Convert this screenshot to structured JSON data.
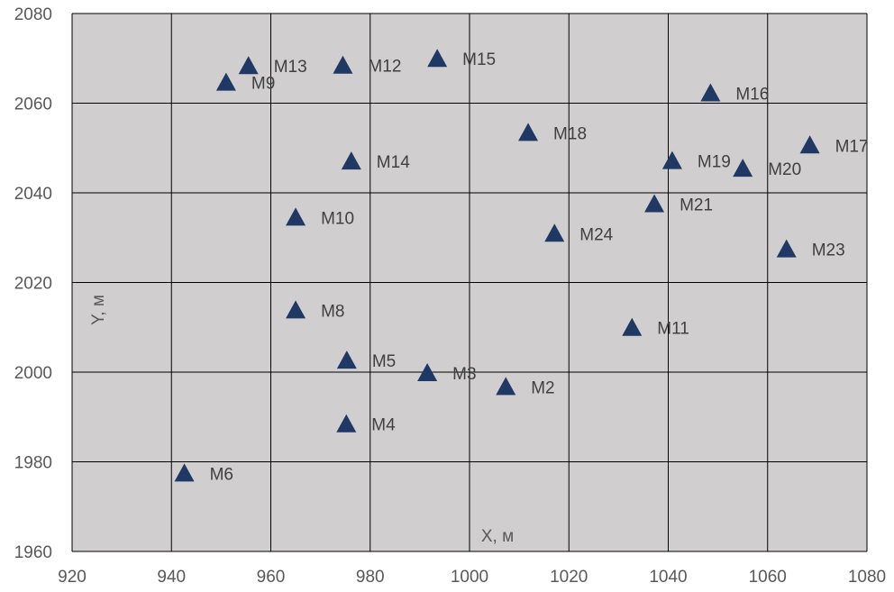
{
  "chart_data": {
    "type": "scatter",
    "xlabel": "X, м",
    "ylabel": "Y, м",
    "xlim": [
      920,
      1080
    ],
    "ylim": [
      1960,
      2080
    ],
    "x_ticks": [
      920,
      940,
      960,
      980,
      1000,
      1020,
      1040,
      1060,
      1080
    ],
    "y_ticks": [
      1960,
      1980,
      2000,
      2020,
      2040,
      2060,
      2080
    ],
    "grid": true,
    "marker": "triangle",
    "marker_color": "#1f3864",
    "plot_background": "#d0cece",
    "grid_color": "#000000",
    "points": [
      {
        "label": "M13",
        "x": 955.5,
        "y": 2068.3
      },
      {
        "label": "M9",
        "x": 951.0,
        "y": 2064.6
      },
      {
        "label": "M12",
        "x": 974.5,
        "y": 2068.4
      },
      {
        "label": "M15",
        "x": 993.5,
        "y": 2069.9
      },
      {
        "label": "M16",
        "x": 1048.5,
        "y": 2062.2
      },
      {
        "label": "M18",
        "x": 1011.8,
        "y": 2053.4
      },
      {
        "label": "M17",
        "x": 1068.5,
        "y": 2050.6
      },
      {
        "label": "M14",
        "x": 976.2,
        "y": 2047.0
      },
      {
        "label": "M19",
        "x": 1040.8,
        "y": 2047.1
      },
      {
        "label": "M20",
        "x": 1055.0,
        "y": 2045.4
      },
      {
        "label": "M21",
        "x": 1037.2,
        "y": 2037.5
      },
      {
        "label": "M10",
        "x": 965.0,
        "y": 2034.5
      },
      {
        "label": "M24",
        "x": 1017.1,
        "y": 2030.9
      },
      {
        "label": "M23",
        "x": 1063.8,
        "y": 2027.4
      },
      {
        "label": "M8",
        "x": 965.0,
        "y": 2013.8
      },
      {
        "label": "M11",
        "x": 1032.7,
        "y": 2009.9
      },
      {
        "label": "M5",
        "x": 975.3,
        "y": 2002.6
      },
      {
        "label": "M3",
        "x": 991.5,
        "y": 1999.8
      },
      {
        "label": "M2",
        "x": 1007.3,
        "y": 1996.7
      },
      {
        "label": "M4",
        "x": 975.2,
        "y": 1988.4
      },
      {
        "label": "M6",
        "x": 942.6,
        "y": 1977.4
      }
    ]
  }
}
